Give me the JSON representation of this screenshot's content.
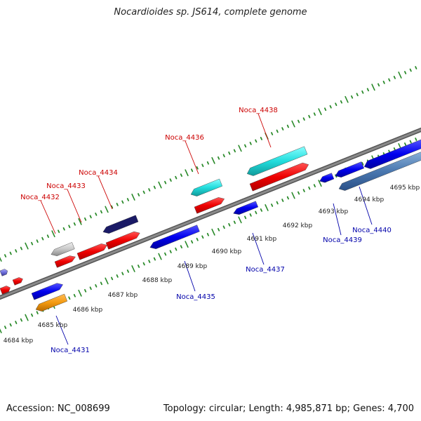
{
  "title": "Nocardioides sp. JS614, complete genome",
  "footer": {
    "accession": "Accession: NC_008699",
    "summary": "Topology: circular; Length: 4,985,871 bp; Genes: 4,700"
  },
  "colors": {
    "forward_label": "#cc0000",
    "reverse_label": "#0000aa",
    "backbone": "#8a8a8a",
    "tick_dots": "#2a8a2a"
  },
  "scale_ticks": [
    {
      "label": "4684 kbp"
    },
    {
      "label": "4685 kbp"
    },
    {
      "label": "4686 kbp"
    },
    {
      "label": "4687 kbp"
    },
    {
      "label": "4688 kbp"
    },
    {
      "label": "4689 kbp"
    },
    {
      "label": "4690 kbp"
    },
    {
      "label": "4691 kbp"
    },
    {
      "label": "4692 kbp"
    },
    {
      "label": "4693 kbp"
    },
    {
      "label": "4694 kbp"
    },
    {
      "label": "4695 kbp"
    }
  ],
  "forward_genes": [
    {
      "label": "Noca_4432"
    },
    {
      "label": "Noca_4433"
    },
    {
      "label": "Noca_4434"
    },
    {
      "label": "Noca_4436"
    },
    {
      "label": "Noca_4438"
    }
  ],
  "reverse_genes": [
    {
      "label": "Noca_4431"
    },
    {
      "label": "Noca_4435"
    },
    {
      "label": "Noca_4437"
    },
    {
      "label": "Noca_4439"
    },
    {
      "label": "Noca_4440"
    }
  ]
}
